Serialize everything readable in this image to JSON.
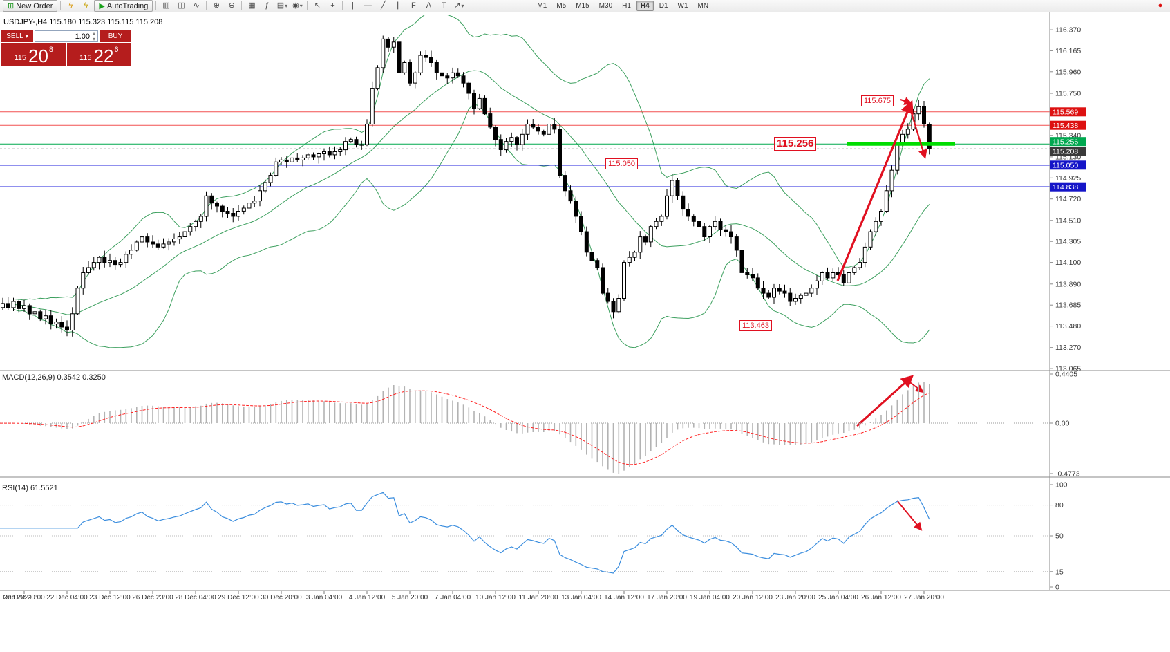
{
  "toolbar": {
    "timeframes": [
      "M1",
      "M5",
      "M15",
      "M30",
      "H1",
      "H4",
      "D1",
      "W1",
      "MN"
    ],
    "active_timeframe": "H4",
    "items": [
      {
        "type": "labeled",
        "name": "new-order-button",
        "glyph": "⊞",
        "glyph_color": "#18921a",
        "label": "New Order"
      },
      {
        "type": "sep"
      },
      {
        "type": "icon",
        "name": "metaeditor-icon",
        "glyph": "ϟ",
        "glyph_color": "#d99a10"
      },
      {
        "type": "icon",
        "name": "expert-advisor-icon",
        "glyph": "ϟ",
        "glyph_color": "#caa50f"
      },
      {
        "type": "labeled",
        "name": "autotrading-button",
        "glyph": "▶",
        "glyph_color": "#18a01a",
        "label": "AutoTrading"
      },
      {
        "type": "sep"
      },
      {
        "type": "icon",
        "name": "bar-chart-icon",
        "glyph": "▥"
      },
      {
        "type": "icon",
        "name": "candlestick-chart-icon",
        "glyph": "◫"
      },
      {
        "type": "icon",
        "name": "line-chart-icon",
        "glyph": "∿"
      },
      {
        "type": "sep"
      },
      {
        "type": "icon",
        "name": "zoom-in-icon",
        "glyph": "⊕"
      },
      {
        "type": "icon",
        "name": "zoom-out-icon",
        "glyph": "⊖"
      },
      {
        "type": "sep"
      },
      {
        "type": "icon",
        "name": "tile-windows-icon",
        "glyph": "▦"
      },
      {
        "type": "icon",
        "name": "indicators-icon",
        "glyph": "ƒ"
      },
      {
        "type": "icon",
        "name": "templates-icon",
        "glyph": "▤",
        "dropdown": true
      },
      {
        "type": "icon",
        "name": "timeframe-menu-icon",
        "glyph": "◉",
        "dropdown": true
      },
      {
        "type": "sep"
      },
      {
        "type": "icon",
        "name": "cursor-icon",
        "glyph": "↖"
      },
      {
        "type": "icon",
        "name": "crosshair-icon",
        "glyph": "+"
      },
      {
        "type": "sep"
      },
      {
        "type": "icon",
        "name": "vertical-line-icon",
        "glyph": "|"
      },
      {
        "type": "icon",
        "name": "horizontal-line-icon",
        "glyph": "—"
      },
      {
        "type": "icon",
        "name": "trendline-icon",
        "glyph": "╱"
      },
      {
        "type": "icon",
        "name": "equidistant-channel-icon",
        "glyph": "∥"
      },
      {
        "type": "icon",
        "name": "fibonacci-icon",
        "glyph": "F"
      },
      {
        "type": "icon",
        "name": "text-icon",
        "glyph": "A"
      },
      {
        "type": "icon",
        "name": "text-label-icon",
        "glyph": "T"
      },
      {
        "type": "icon",
        "name": "arrow-tools-icon",
        "glyph": "↗",
        "dropdown": true
      },
      {
        "type": "sep"
      },
      {
        "type": "timeframes"
      },
      {
        "type": "spacer"
      },
      {
        "type": "icon",
        "name": "connection-status-icon",
        "glyph": "●",
        "glyph_color": "#dd1111"
      }
    ]
  },
  "chart": {
    "symbol_line": "USDJPY-,H4  115.180 115.323 115.115 115.208"
  },
  "trade_panel": {
    "sell_label": "SELL",
    "buy_label": "BUY",
    "volume": "1.00",
    "sell_prefix": "115",
    "sell_big": "20",
    "sell_sup": "8",
    "buy_prefix": "115",
    "buy_big": "22",
    "buy_sup": "6"
  },
  "annotations": {
    "labels": [
      {
        "text": "115.675"
      },
      {
        "text": "115.256"
      },
      {
        "text": "115.050"
      },
      {
        "text": "113.463"
      }
    ]
  },
  "panels": {
    "macd_label": "MACD(12,26,9) 0.3542 0.3250",
    "rsi_label": "RSI(14) 61.5521"
  },
  "chart_data": {
    "type": "candlestick",
    "symbol": "USDJPY-",
    "timeframe": "H4",
    "ohlc_display": {
      "open": "115.180",
      "high": "115.323",
      "low": "115.115",
      "close": "115.208"
    },
    "closes": [
      113.7,
      113.66,
      113.72,
      113.65,
      113.68,
      113.6,
      113.62,
      113.55,
      113.58,
      113.5,
      113.52,
      113.47,
      113.44,
      113.6,
      113.85,
      114.0,
      114.05,
      114.1,
      114.15,
      114.1,
      114.12,
      114.08,
      114.1,
      114.18,
      114.22,
      114.3,
      114.35,
      114.3,
      114.28,
      114.25,
      114.28,
      114.3,
      114.33,
      114.35,
      114.4,
      114.45,
      114.5,
      114.55,
      114.75,
      114.68,
      114.65,
      114.6,
      114.58,
      114.55,
      114.6,
      114.63,
      114.68,
      114.7,
      114.8,
      114.88,
      114.95,
      115.08,
      115.1,
      115.08,
      115.12,
      115.1,
      115.12,
      115.15,
      115.13,
      115.16,
      115.18,
      115.15,
      115.18,
      115.2,
      115.28,
      115.3,
      115.25,
      115.25,
      115.45,
      115.8,
      116.0,
      116.28,
      116.2,
      116.25,
      115.95,
      116.05,
      115.85,
      115.95,
      116.12,
      116.1,
      116.05,
      115.95,
      115.92,
      115.9,
      115.95,
      115.92,
      115.85,
      115.75,
      115.6,
      115.7,
      115.55,
      115.42,
      115.3,
      115.2,
      115.28,
      115.32,
      115.25,
      115.35,
      115.45,
      115.42,
      115.38,
      115.35,
      115.45,
      115.4,
      114.95,
      114.8,
      114.7,
      114.55,
      114.4,
      114.2,
      114.12,
      114.05,
      113.8,
      113.72,
      113.62,
      113.75,
      114.1,
      114.15,
      114.2,
      114.35,
      114.3,
      114.45,
      114.5,
      114.55,
      114.75,
      114.9,
      114.75,
      114.62,
      114.55,
      114.5,
      114.45,
      114.35,
      114.45,
      114.5,
      114.42,
      114.4,
      114.35,
      114.22,
      114.0,
      113.98,
      113.95,
      113.85,
      113.8,
      113.76,
      113.85,
      113.82,
      113.8,
      113.72,
      113.75,
      113.78,
      113.8,
      113.85,
      113.92,
      114.0,
      113.95,
      114.0,
      113.98,
      113.9,
      114.0,
      114.05,
      114.1,
      114.25,
      114.4,
      114.5,
      114.6,
      114.8,
      115.0,
      115.25,
      115.35,
      115.4,
      115.55,
      115.62,
      115.45,
      115.208
    ],
    "price_axis_ticks": [
      116.37,
      116.165,
      115.96,
      115.75,
      115.34,
      115.13,
      114.925,
      114.72,
      114.51,
      114.305,
      114.1,
      113.89,
      113.685,
      113.48,
      113.27,
      113.065
    ],
    "price_levels": [
      {
        "value": 115.569,
        "color": "#dd1111",
        "line": "#f25050",
        "style": "solid"
      },
      {
        "value": 115.438,
        "color": "#dd1111",
        "line": "#f25050",
        "style": "solid"
      },
      {
        "value": 115.256,
        "color": "#00a84f",
        "line": "#00a84f",
        "style": "solid"
      },
      {
        "value": 115.208,
        "color": "#3a3a3a",
        "line": "#777777",
        "style": "dashed"
      },
      {
        "value": 115.05,
        "color": "#1515c8",
        "line": "#2222dd",
        "style": "solid"
      },
      {
        "value": 114.838,
        "color": "#1515c8",
        "line": "#2222dd",
        "style": "solid"
      }
    ],
    "bollinger": {
      "period": 20,
      "deviations": 2,
      "color": "#3da05f"
    },
    "macd": {
      "params": "12,26,9",
      "main_value": "0.3542",
      "signal_value": "0.3250",
      "axis_ticks": [
        "0.4405",
        "0.00",
        "-0.4773"
      ]
    },
    "rsi": {
      "period": 14,
      "value": "61.5521",
      "axis_ticks": [
        100,
        80,
        50,
        15,
        0
      ],
      "levels": [
        80,
        50,
        15
      ]
    },
    "time_labels": [
      "Dec 2021",
      "20 Dec 20:00",
      "22 Dec 04:00",
      "23 Dec 12:00",
      "26 Dec 23:00",
      "28 Dec 04:00",
      "29 Dec 12:00",
      "30 Dec 20:00",
      "3 Jan 04:00",
      "4 Jan 12:00",
      "5 Jan 20:00",
      "7 Jan 04:00",
      "10 Jan 12:00",
      "11 Jan 20:00",
      "13 Jan 04:00",
      "14 Jan 12:00",
      "17 Jan 20:00",
      "19 Jan 04:00",
      "20 Jan 12:00",
      "23 Jan 20:00",
      "25 Jan 04:00",
      "26 Jan 12:00",
      "27 Jan 20:00"
    ],
    "highlight_color": "#00dd00",
    "annotation_color": "#e01020"
  }
}
